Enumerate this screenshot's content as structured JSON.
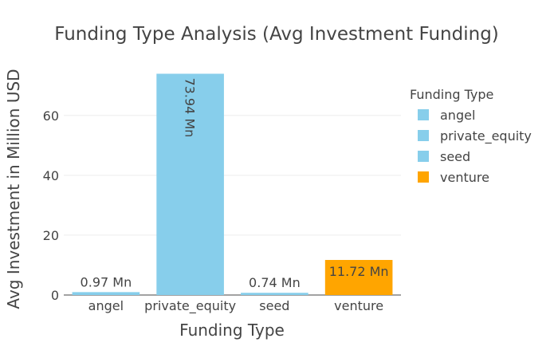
{
  "chart_data": {
    "type": "bar",
    "title": "Funding Type Analysis (Avg Investment Funding)",
    "xlabel": "Funding Type",
    "ylabel": "Avg Investment in Million USD",
    "categories": [
      "angel",
      "private_equity",
      "seed",
      "venture"
    ],
    "values": [
      0.97,
      73.94,
      0.74,
      11.72
    ],
    "data_labels": [
      "0.97 Mn",
      "73.94 Mn",
      "0.74 Mn",
      "11.72 Mn"
    ],
    "yticks": [
      0,
      20,
      40,
      60
    ],
    "ylim": [
      0,
      77.8
    ],
    "grid": "horizontal",
    "legend": {
      "title": "Funding Type",
      "placement": "top-right",
      "entries": [
        "angel",
        "private_equity",
        "seed",
        "venture"
      ]
    },
    "colors": [
      "#87ceeb",
      "#87ceeb",
      "#87ceeb",
      "#ffa500"
    ]
  }
}
